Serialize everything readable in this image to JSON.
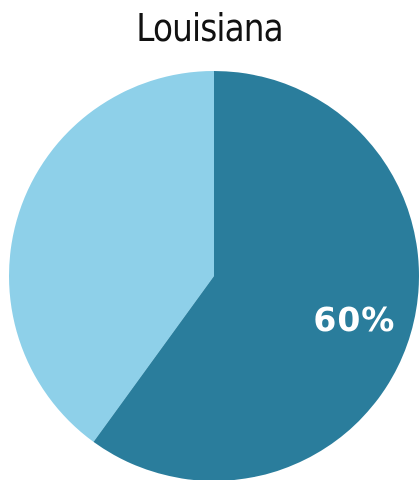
{
  "chart_data": {
    "type": "pie",
    "title": "Louisiana",
    "slices": [
      {
        "value": 60,
        "label": "60%",
        "color": "#2a7d9c"
      },
      {
        "value": 40,
        "label": "",
        "color": "#8ed0e9"
      }
    ],
    "start_angle_deg": 0,
    "direction": "clockwise"
  }
}
